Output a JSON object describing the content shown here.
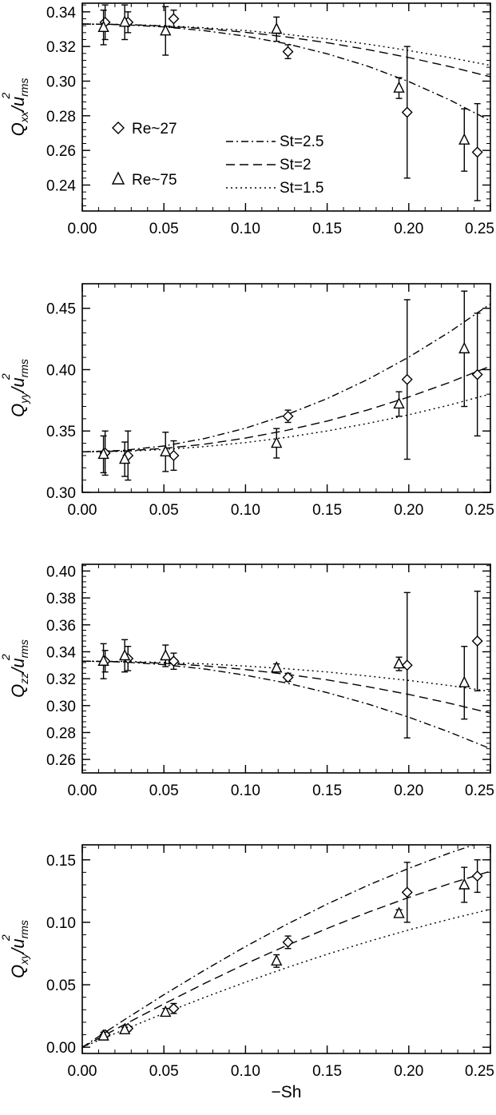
{
  "chart_data": [
    {
      "type": "scatter",
      "ylabel": {
        "base": "Q",
        "sub": "xx",
        "den": "u",
        "den_sub": "rms",
        "den_sup": "2"
      },
      "xlabel": "",
      "xlim": [
        0.0,
        0.25
      ],
      "ylim": [
        0.225,
        0.345
      ],
      "xticks": [
        0.0,
        0.05,
        0.1,
        0.15,
        0.2,
        0.25
      ],
      "xtick_labels": [
        "0.00",
        "0.05",
        "0.10",
        "0.15",
        "0.20",
        "0.25"
      ],
      "yticks": [
        0.24,
        0.26,
        0.28,
        0.3,
        0.32,
        0.34
      ],
      "ytick_labels": [
        "0.24",
        "0.26",
        "0.28",
        "0.30",
        "0.32",
        "0.34"
      ],
      "grid": false,
      "legend": {
        "placement": "left-center",
        "markers": [
          {
            "symbol": "diamond",
            "label": "Re~27"
          },
          {
            "symbol": "triangle",
            "label": "Re~75"
          }
        ],
        "lines": [
          {
            "style": "dashdot",
            "label": "St=2.5"
          },
          {
            "style": "dashed",
            "label": "St=2"
          },
          {
            "style": "dotted",
            "label": "St=1.5"
          }
        ]
      },
      "series": [
        {
          "name": "Re~27",
          "marker": "diamond",
          "x": [
            0.014,
            0.028,
            0.056,
            0.126,
            0.199,
            0.242
          ],
          "y": [
            0.334,
            0.334,
            0.336,
            0.317,
            0.282,
            0.259
          ],
          "yerr": [
            0.01,
            0.006,
            0.005,
            0.004,
            0.038,
            0.028
          ]
        },
        {
          "name": "Re~75",
          "marker": "triangle",
          "x": [
            0.013,
            0.026,
            0.051,
            0.119,
            0.194,
            0.234
          ],
          "y": [
            0.331,
            0.334,
            0.329,
            0.33,
            0.296,
            0.266
          ],
          "yerr": [
            0.01,
            0.01,
            0.014,
            0.007,
            0.006,
            0.018
          ]
        },
        {
          "name": "St=2.5",
          "style": "dashdot",
          "x": [
            0.0,
            0.025,
            0.05,
            0.075,
            0.1,
            0.125,
            0.15,
            0.175,
            0.2,
            0.225,
            0.25
          ],
          "y": [
            0.333,
            0.3326,
            0.3313,
            0.3291,
            0.326,
            0.3216,
            0.3158,
            0.3086,
            0.2997,
            0.2892,
            0.277
          ]
        },
        {
          "name": "St=2",
          "style": "dashed",
          "x": [
            0.0,
            0.025,
            0.05,
            0.075,
            0.1,
            0.125,
            0.15,
            0.175,
            0.2,
            0.225,
            0.25
          ],
          "y": [
            0.333,
            0.3327,
            0.3318,
            0.3303,
            0.3282,
            0.3255,
            0.3222,
            0.3182,
            0.3136,
            0.3084,
            0.3025
          ]
        },
        {
          "name": "St=1.5",
          "style": "dotted",
          "x": [
            0.0,
            0.025,
            0.05,
            0.075,
            0.1,
            0.125,
            0.15,
            0.175,
            0.2,
            0.225,
            0.25
          ],
          "y": [
            0.333,
            0.3327,
            0.332,
            0.3308,
            0.3292,
            0.327,
            0.3244,
            0.3213,
            0.3177,
            0.3136,
            0.3091
          ]
        }
      ]
    },
    {
      "type": "scatter",
      "ylabel": {
        "base": "Q",
        "sub": "yy",
        "den": "u",
        "den_sub": "rms",
        "den_sup": "2"
      },
      "xlabel": "",
      "xlim": [
        0.0,
        0.25
      ],
      "ylim": [
        0.3,
        0.47
      ],
      "xticks": [
        0.0,
        0.05,
        0.1,
        0.15,
        0.2,
        0.25
      ],
      "xtick_labels": [
        "0.00",
        "0.05",
        "0.10",
        "0.15",
        "0.20",
        "0.25"
      ],
      "yticks": [
        0.3,
        0.35,
        0.4,
        0.45
      ],
      "ytick_labels": [
        "0.30",
        "0.35",
        "0.40",
        "0.45"
      ],
      "grid": false,
      "series": [
        {
          "name": "Re~27",
          "marker": "diamond",
          "x": [
            0.014,
            0.028,
            0.056,
            0.126,
            0.199,
            0.242
          ],
          "y": [
            0.332,
            0.33,
            0.33,
            0.362,
            0.392,
            0.396
          ],
          "yerr": [
            0.018,
            0.02,
            0.012,
            0.005,
            0.065,
            0.05
          ]
        },
        {
          "name": "Re~75",
          "marker": "triangle",
          "x": [
            0.013,
            0.026,
            0.051,
            0.119,
            0.194,
            0.234
          ],
          "y": [
            0.331,
            0.327,
            0.333,
            0.34,
            0.372,
            0.417
          ],
          "yerr": [
            0.015,
            0.014,
            0.016,
            0.012,
            0.01,
            0.047
          ]
        },
        {
          "name": "St=2.5",
          "style": "dashdot",
          "x": [
            0.0,
            0.025,
            0.05,
            0.075,
            0.1,
            0.125,
            0.15,
            0.175,
            0.2,
            0.225,
            0.25
          ],
          "y": [
            0.333,
            0.3342,
            0.3378,
            0.3439,
            0.3523,
            0.3632,
            0.3764,
            0.3921,
            0.4102,
            0.4307,
            0.4536
          ]
        },
        {
          "name": "St=2",
          "style": "dashed",
          "x": [
            0.0,
            0.025,
            0.05,
            0.075,
            0.1,
            0.125,
            0.15,
            0.175,
            0.2,
            0.225,
            0.25
          ],
          "y": [
            0.333,
            0.3337,
            0.3358,
            0.3393,
            0.3442,
            0.3505,
            0.3581,
            0.3672,
            0.3777,
            0.3896,
            0.4029
          ]
        },
        {
          "name": "St=1.5",
          "style": "dotted",
          "x": [
            0.0,
            0.025,
            0.05,
            0.075,
            0.1,
            0.125,
            0.15,
            0.175,
            0.2,
            0.225,
            0.25
          ],
          "y": [
            0.333,
            0.3335,
            0.3349,
            0.3373,
            0.3406,
            0.3448,
            0.35,
            0.3562,
            0.3632,
            0.3712,
            0.3802
          ]
        }
      ]
    },
    {
      "type": "scatter",
      "ylabel": {
        "base": "Q",
        "sub": "zz",
        "den": "u",
        "den_sub": "rms",
        "den_sup": "2"
      },
      "xlabel": "",
      "xlim": [
        0.0,
        0.25
      ],
      "ylim": [
        0.25,
        0.405
      ],
      "xticks": [
        0.0,
        0.05,
        0.1,
        0.15,
        0.2,
        0.25
      ],
      "xtick_labels": [
        "0.00",
        "0.05",
        "0.10",
        "0.15",
        "0.20",
        "0.25"
      ],
      "yticks": [
        0.26,
        0.28,
        0.3,
        0.32,
        0.34,
        0.36,
        0.38,
        0.4
      ],
      "ytick_labels": [
        "0.26",
        "0.28",
        "0.30",
        "0.32",
        "0.34",
        "0.36",
        "0.38",
        "0.40"
      ],
      "grid": false,
      "series": [
        {
          "name": "Re~27",
          "marker": "diamond",
          "x": [
            0.014,
            0.028,
            0.056,
            0.126,
            0.199,
            0.242
          ],
          "y": [
            0.333,
            0.335,
            0.333,
            0.321,
            0.33,
            0.348
          ],
          "yerr": [
            0.008,
            0.009,
            0.006,
            0.003,
            0.054,
            0.037
          ]
        },
        {
          "name": "Re~75",
          "marker": "triangle",
          "x": [
            0.013,
            0.026,
            0.051,
            0.119,
            0.194,
            0.234
          ],
          "y": [
            0.333,
            0.337,
            0.337,
            0.328,
            0.331,
            0.317
          ],
          "yerr": [
            0.013,
            0.012,
            0.008,
            0.003,
            0.005,
            0.027
          ]
        },
        {
          "name": "St=2.5",
          "style": "dashdot",
          "x": [
            0.0,
            0.025,
            0.05,
            0.075,
            0.1,
            0.125,
            0.15,
            0.175,
            0.2,
            0.225,
            0.25
          ],
          "y": [
            0.333,
            0.3324,
            0.3304,
            0.3272,
            0.3226,
            0.3168,
            0.3096,
            0.3012,
            0.2914,
            0.2803,
            0.268
          ]
        },
        {
          "name": "St=2",
          "style": "dashed",
          "x": [
            0.0,
            0.025,
            0.05,
            0.075,
            0.1,
            0.125,
            0.15,
            0.175,
            0.2,
            0.225,
            0.25
          ],
          "y": [
            0.333,
            0.3326,
            0.3314,
            0.3295,
            0.3268,
            0.3233,
            0.3191,
            0.314,
            0.3083,
            0.3017,
            0.2944
          ]
        },
        {
          "name": "St=1.5",
          "style": "dotted",
          "x": [
            0.0,
            0.025,
            0.05,
            0.075,
            0.1,
            0.125,
            0.15,
            0.175,
            0.2,
            0.225,
            0.25
          ],
          "y": [
            0.333,
            0.3328,
            0.3321,
            0.331,
            0.3294,
            0.3274,
            0.325,
            0.322,
            0.3187,
            0.3149,
            0.3106
          ]
        }
      ]
    },
    {
      "type": "scatter",
      "ylabel": {
        "base": "Q",
        "sub": "xy",
        "den": "u",
        "den_sub": "rms",
        "den_sup": "2"
      },
      "xlabel": "−Sh",
      "xlim": [
        0.0,
        0.25
      ],
      "ylim": [
        -0.005,
        0.162
      ],
      "xticks": [
        0.0,
        0.05,
        0.1,
        0.15,
        0.2,
        0.25
      ],
      "xtick_labels": [
        "0.00",
        "0.05",
        "0.10",
        "0.15",
        "0.20",
        "0.25"
      ],
      "yticks": [
        0.0,
        0.05,
        0.1,
        0.15
      ],
      "ytick_labels": [
        "0.00",
        "0.05",
        "0.10",
        "0.15"
      ],
      "grid": false,
      "series": [
        {
          "name": "Re~27",
          "marker": "diamond",
          "x": [
            0.014,
            0.028,
            0.056,
            0.126,
            0.199,
            0.242
          ],
          "y": [
            0.01,
            0.015,
            0.031,
            0.084,
            0.124,
            0.137
          ],
          "yerr": [
            0.003,
            0.002,
            0.004,
            0.005,
            0.024,
            0.013
          ]
        },
        {
          "name": "Re~75",
          "marker": "triangle",
          "x": [
            0.013,
            0.026,
            0.051,
            0.119,
            0.194,
            0.234
          ],
          "y": [
            0.009,
            0.014,
            0.028,
            0.069,
            0.107,
            0.13
          ],
          "yerr": [
            0.003,
            0.002,
            0.003,
            0.005,
            0.003,
            0.014
          ]
        },
        {
          "name": "St=2.5",
          "style": "dashdot",
          "x": [
            0.0,
            0.025,
            0.05,
            0.075,
            0.1,
            0.125,
            0.15,
            0.175,
            0.2,
            0.225,
            0.25
          ],
          "y": [
            0.0,
            0.0213,
            0.042,
            0.0618,
            0.0806,
            0.0982,
            0.1146,
            0.1296,
            0.1432,
            0.1555,
            0.1665
          ]
        },
        {
          "name": "St=2",
          "style": "dashed",
          "x": [
            0.0,
            0.025,
            0.05,
            0.075,
            0.1,
            0.125,
            0.15,
            0.175,
            0.2,
            0.225,
            0.25
          ],
          "y": [
            0.0,
            0.0176,
            0.0347,
            0.0511,
            0.0667,
            0.0813,
            0.0951,
            0.108,
            0.1199,
            0.1309,
            0.1409
          ]
        },
        {
          "name": "St=1.5",
          "style": "dotted",
          "x": [
            0.0,
            0.025,
            0.05,
            0.075,
            0.1,
            0.125,
            0.15,
            0.175,
            0.2,
            0.225,
            0.25
          ],
          "y": [
            0.0,
            0.0137,
            0.0271,
            0.0399,
            0.0521,
            0.0636,
            0.0744,
            0.0845,
            0.0939,
            0.1025,
            0.1104
          ]
        }
      ]
    }
  ]
}
